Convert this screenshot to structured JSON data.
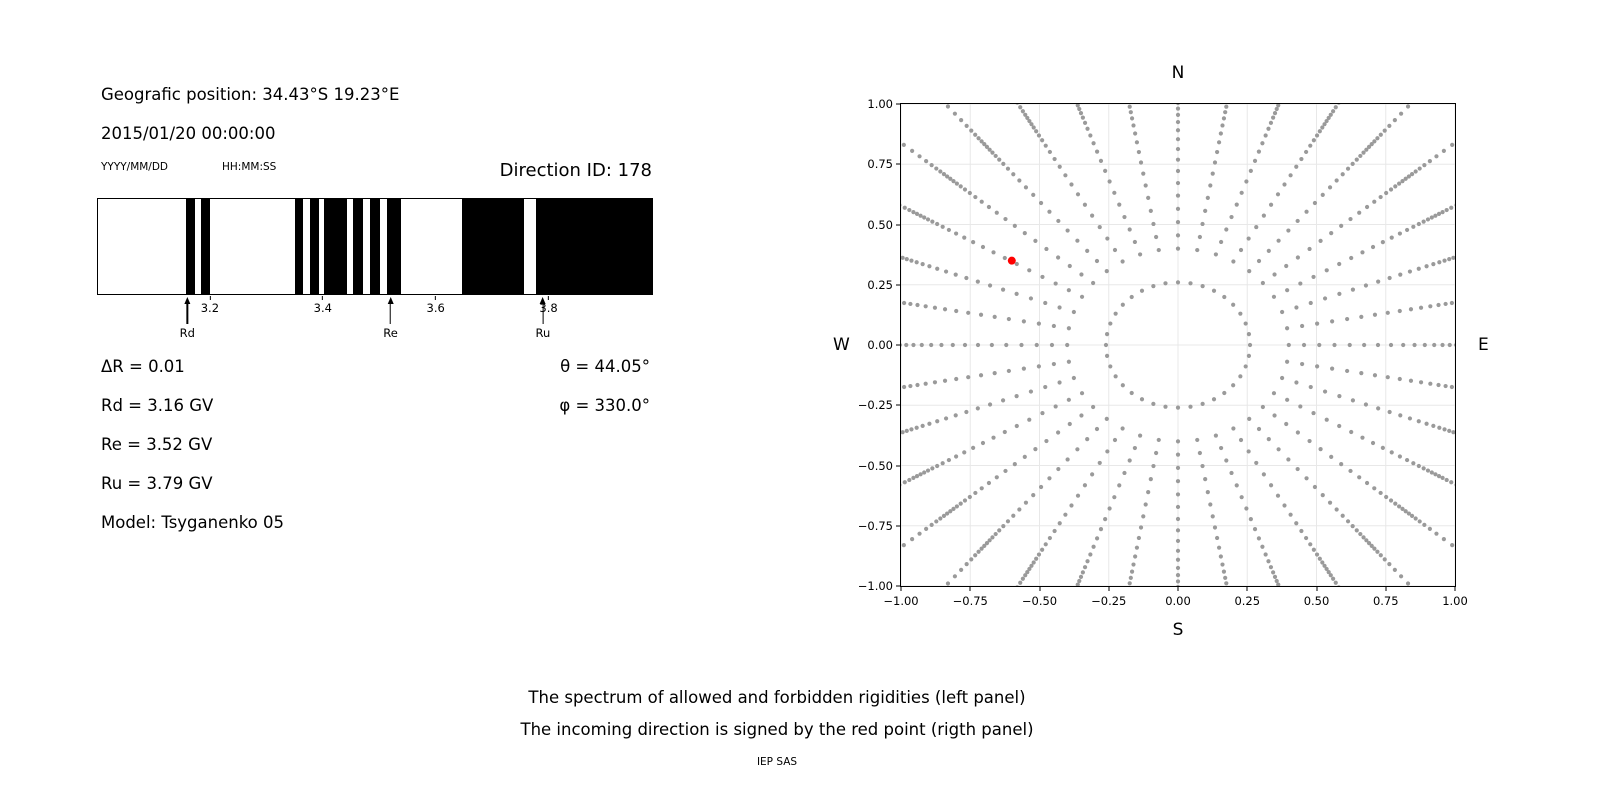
{
  "left_panel": {
    "position_line": "Geografic position: 34.43°S 19.23°E",
    "datetime_line": "2015/01/20 00:00:00",
    "date_format_label": "YYYY/MM/DD",
    "time_format_label": "HH:MM:SS",
    "direction_id_line": "Direction ID: 178",
    "params_left": [
      "ΔR = 0.01",
      "Rd = 3.16 GV",
      "Re = 3.52 GV",
      "Ru = 3.79 GV",
      "Model: Tsyganenko 05"
    ],
    "params_right": [
      "θ = 44.05°",
      "φ = 330.0°"
    ]
  },
  "caption": {
    "line1": "The spectrum of allowed and forbidden rigidities (left panel)",
    "line2": "The incoming direction is signed by the red point (rigth panel)",
    "credit": "IEP SAS"
  },
  "chart_data": [
    {
      "type": "bar",
      "xlim": [
        3.0,
        3.985
      ],
      "xticks": [
        3.2,
        3.4,
        3.6,
        3.8
      ],
      "xtick_labels": [
        "3.2",
        "3.4",
        "3.6",
        "3.8"
      ],
      "band_color": "#000000",
      "forbidden_bands_GV": [
        [
          3.157,
          3.172
        ],
        [
          3.184,
          3.2
        ],
        [
          3.35,
          3.365
        ],
        [
          3.377,
          3.393
        ],
        [
          3.402,
          3.443
        ],
        [
          3.453,
          3.471
        ],
        [
          3.483,
          3.501
        ],
        [
          3.513,
          3.538
        ],
        [
          3.648,
          3.758
        ],
        [
          3.779,
          3.985
        ]
      ],
      "markers": [
        {
          "label": "Rd",
          "GV": 3.16
        },
        {
          "label": "Re",
          "GV": 3.52
        },
        {
          "label": "Ru",
          "GV": 3.79
        }
      ]
    },
    {
      "type": "scatter",
      "xlim": [
        -1.0,
        1.0
      ],
      "ylim": [
        -1.0,
        1.0
      ],
      "xticks": [
        -1.0,
        -0.75,
        -0.5,
        -0.25,
        0.0,
        0.25,
        0.5,
        0.75,
        1.0
      ],
      "xtick_labels": [
        "−1.00",
        "−0.75",
        "−0.50",
        "−0.25",
        "0.00",
        "0.25",
        "0.50",
        "0.75",
        "1.00"
      ],
      "ytick_labels": [
        "−1.00",
        "−0.75",
        "−0.50",
        "−0.25",
        "0.00",
        "0.25",
        "0.50",
        "0.75",
        "1.00"
      ],
      "compass": {
        "top": "N",
        "bottom": "S",
        "left": "W",
        "right": "E"
      },
      "grid": true,
      "dot_color": "#9a9a9a",
      "spokes": {
        "angles_deg": [
          0,
          10,
          20,
          30,
          40,
          50,
          60,
          70,
          80,
          90,
          100,
          110,
          120,
          130,
          140,
          150,
          160,
          170,
          180,
          190,
          200,
          210,
          220,
          230,
          240,
          250,
          260,
          270,
          280,
          290,
          300,
          310,
          320,
          330,
          340,
          350
        ],
        "radii": [
          0.4,
          0.455,
          0.51,
          0.565,
          0.62,
          0.672,
          0.722,
          0.769,
          0.813,
          0.854,
          0.891,
          0.925,
          0.955,
          0.981,
          1.004,
          1.024,
          1.042,
          1.058,
          1.073,
          1.088,
          1.103,
          1.12,
          1.139,
          1.161,
          1.187,
          1.218,
          1.253,
          1.292,
          1.335
        ]
      },
      "inner_ring": {
        "radius": 0.26,
        "angles_deg": [
          0,
          10,
          20,
          30,
          40,
          50,
          60,
          70,
          80,
          90,
          100,
          110,
          120,
          130,
          140,
          150,
          160,
          170,
          180,
          190,
          200,
          210,
          220,
          230,
          240,
          250,
          260,
          270,
          280,
          290,
          300,
          310,
          320,
          330,
          340,
          350
        ]
      },
      "red_point": {
        "x": -0.6,
        "y": 0.35,
        "color": "#ff0000"
      }
    }
  ]
}
